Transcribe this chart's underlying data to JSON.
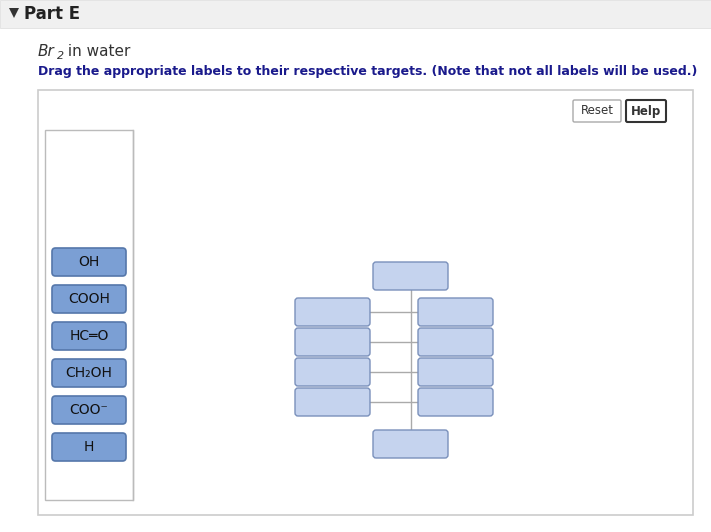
{
  "bg_color": "#ffffff",
  "header_bg": "#f0f0f0",
  "title": "Part E",
  "subtitle_br": "Br",
  "subtitle_2": "2",
  "subtitle_rest": " in water",
  "instruction": "Drag the appropriate labels to their respective targets. (Note that not all labels will be used.)",
  "label_texts": [
    "OH",
    "COOH",
    "HC=O",
    "CH₂OH",
    "COO⁻",
    "H"
  ],
  "label_bg": "#7b9fd4",
  "label_border": "#5577aa",
  "box_fill": "#c5d3ee",
  "box_border": "#7a90bb",
  "line_color": "#aaaaaa",
  "panel_border": "#cccccc",
  "panel_bg": "#ffffff",
  "inner_left_border": "#bbbbbb",
  "reset_btn": "Reset",
  "help_btn": "Help"
}
